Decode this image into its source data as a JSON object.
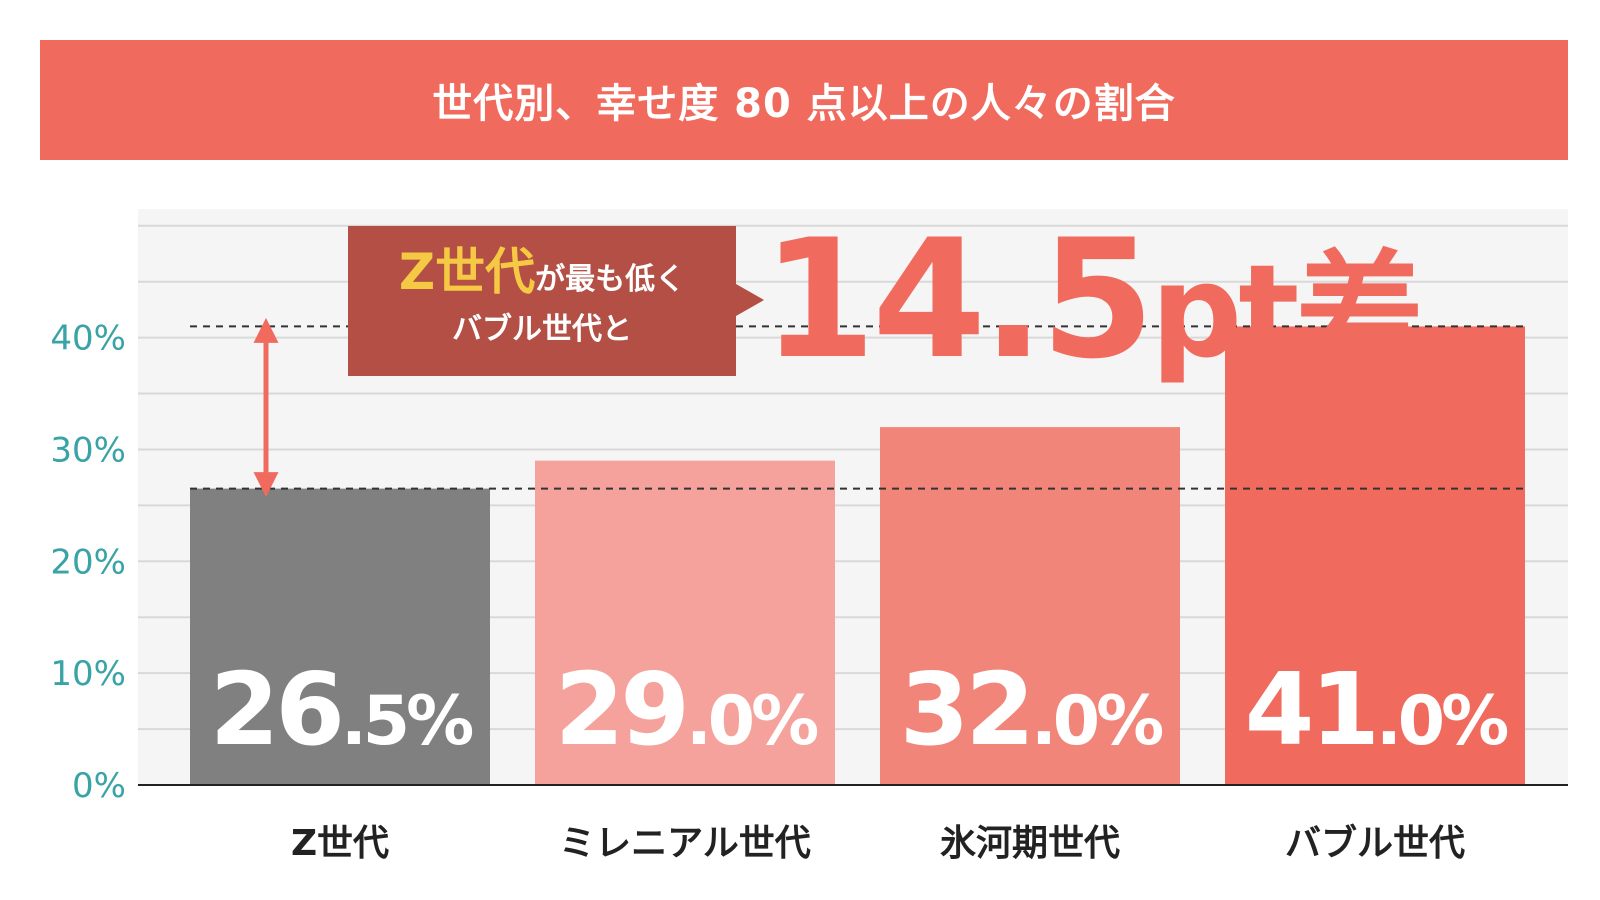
{
  "title": "世代別、幸せ度 80 点以上の人々の割合",
  "callout": {
    "highlight": "Z世代",
    "line1_rest": "が最も低く",
    "line2": "バブル世代と"
  },
  "difference": {
    "value": "14.5",
    "unit": "pt差"
  },
  "chart_data": {
    "type": "bar",
    "title": "世代別、幸せ度 80 点以上の人々の割合",
    "categories": [
      "Z世代",
      "ミレニアル世代",
      "氷河期世代",
      "バブル世代"
    ],
    "values": [
      26.5,
      29.0,
      32.0,
      41.0
    ],
    "value_labels": [
      {
        "int": "26",
        "dec": ".5%"
      },
      {
        "int": "29",
        "dec": ".0%"
      },
      {
        "int": "32",
        "dec": ".0%"
      },
      {
        "int": "41",
        "dec": ".0%"
      }
    ],
    "bar_colors": [
      "#808080",
      "#f4a29b",
      "#f2857a",
      "#f06b5e"
    ],
    "yticks": [
      {
        "value": 0,
        "label": "0%"
      },
      {
        "value": 10,
        "label": "10%"
      },
      {
        "value": 20,
        "label": "20%"
      },
      {
        "value": 30,
        "label": "30%"
      },
      {
        "value": 40,
        "label": "40%"
      }
    ],
    "ylim": [
      0,
      51.5
    ],
    "grid": true,
    "reference_lines": [
      26.5,
      41.0
    ],
    "colors": {
      "accent": "#f06b5e",
      "tick_label": "#3aa3a6",
      "plot_bg": "#f5f5f5",
      "grid": "#d9d9d9",
      "category_label": "#222222",
      "bar_label": "#ffffff"
    }
  }
}
